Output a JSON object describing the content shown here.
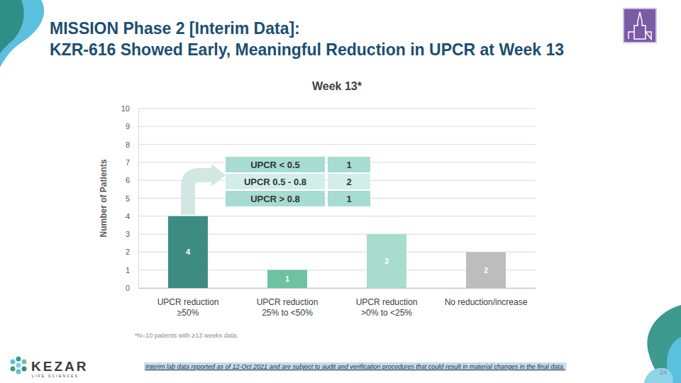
{
  "chart_data": {
    "type": "bar",
    "title": "Week 13*",
    "categories": [
      "UPCR reduction\n≥50%",
      "UPCR reduction\n25% to <50%",
      "UPCR reduction\n>0% to <25%",
      "No reduction/increase"
    ],
    "values": [
      4,
      1,
      3,
      2
    ],
    "colors": [
      "#3d8c82",
      "#6cc3a0",
      "#a8dccc",
      "#bdbdbd"
    ],
    "ylabel": "Number of Patients",
    "ylim": [
      0,
      10
    ],
    "yticks": [
      0,
      1,
      2,
      3,
      4,
      5,
      6,
      7,
      8,
      9,
      10
    ],
    "grid": true,
    "data_labels": true,
    "annotations": {
      "slide_title": [
        "MISSION Phase 2 [Interim Data]:",
        "KZR-616 Showed Early, Meaningful Reduction in UPCR at Week 13"
      ],
      "table": {
        "rows": [
          {
            "label": "UPCR < 0.5",
            "value": 1
          },
          {
            "label": "UPCR 0.5 - 0.8",
            "value": 2
          },
          {
            "label": "UPCR > 0.8",
            "value": 1
          }
        ]
      },
      "footnote": "*N=10 patients with ≥13 weeks data.",
      "disclaimer": "Interim lab data reported as of 12-Oct 2021 and are subject to audit and verification procedures that could result in material changes in the final data.",
      "page_number": 24,
      "logo": "KEZAR",
      "logo_subtitle": "LIFE SCIENCES"
    }
  }
}
